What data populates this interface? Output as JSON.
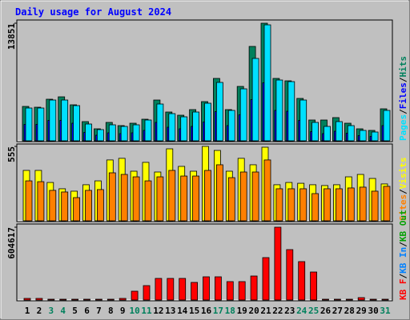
{
  "title": "Daily usage for August 2024",
  "legend_separator": "/",
  "chart_data": [
    {
      "type": "bar",
      "ylim": [
        0,
        13851
      ],
      "yticks": [
        13851
      ],
      "series": [
        {
          "name": "Hits",
          "color": "#00805c",
          "values": [
            4050,
            3956,
            4898,
            5181,
            4239,
            2261,
            1413,
            2167,
            1790,
            2072,
            2543,
            4804,
            3391,
            3014,
            3674,
            4616,
            7348,
            3674,
            6406,
            11116,
            13851,
            7348,
            7065,
            4993,
            2449,
            2449,
            2732,
            2072,
            1413,
            1225,
            3768
          ]
        },
        {
          "name": "Files",
          "color": "#0000ff",
          "values": [
            1931,
            1931,
            2402,
            2402,
            2072,
            989,
            660,
            942,
            848,
            942,
            1225,
            2166,
            1601,
            1413,
            1696,
            2213,
            3438,
            1790,
            3061,
            4851,
            6829,
            3579,
            3485,
            2402,
            1083,
            848,
            1130,
            895,
            612,
            518,
            1790
          ]
        },
        {
          "name": "Pages",
          "color": "#00e0ff",
          "values": [
            3862,
            3862,
            4804,
            4804,
            4145,
            1978,
            1319,
            1884,
            1696,
            1884,
            2449,
            4333,
            3203,
            2826,
            3391,
            4427,
            6877,
            3580,
            6123,
            9703,
            13659,
            7159,
            6971,
            4804,
            2167,
            1696,
            2261,
            1790,
            1225,
            1036,
            3580
          ]
        }
      ]
    },
    {
      "type": "bar",
      "ylim": [
        0,
        555
      ],
      "yticks": [
        555
      ],
      "series": [
        {
          "name": "Visits",
          "color": "#ffff00",
          "values": [
            376,
            376,
            286,
            239,
            221,
            269,
            298,
            454,
            466,
            370,
            436,
            364,
            537,
            406,
            370,
            555,
            525,
            370,
            466,
            418,
            549,
            269,
            286,
            280,
            269,
            263,
            269,
            328,
            346,
            316,
            275
          ]
        },
        {
          "name": "Sites",
          "color": "#ff8000",
          "values": [
            298,
            292,
            227,
            215,
            173,
            227,
            233,
            358,
            346,
            328,
            298,
            328,
            376,
            334,
            334,
            376,
            418,
            322,
            364,
            364,
            454,
            239,
            239,
            239,
            203,
            239,
            239,
            245,
            251,
            221,
            257
          ]
        }
      ]
    },
    {
      "type": "bar",
      "ylim": [
        0,
        604617
      ],
      "yticks": [
        604617
      ],
      "series": [
        {
          "name": "KB F",
          "color": "#ff0000",
          "values": [
            13288,
            13288,
            6644,
            6644,
            6644,
            6644,
            6644,
            6644,
            13288,
            73084,
            119592,
            179388,
            179388,
            179388,
            146168,
            192676,
            192676,
            152812,
            152812,
            199320,
            352132,
            604617,
            418572,
            318912,
            232540,
            6644,
            6644,
            6644,
            19932,
            6644,
            6644
          ]
        }
      ],
      "legend_extra": [
        {
          "name": "KB In",
          "color": "#0080ff"
        },
        {
          "name": "KB Out",
          "color": "#00a000"
        }
      ],
      "categories": [
        "1",
        "2",
        "3",
        "4",
        "5",
        "6",
        "7",
        "8",
        "9",
        "10",
        "11",
        "12",
        "13",
        "14",
        "15",
        "16",
        "17",
        "18",
        "19",
        "20",
        "21",
        "22",
        "23",
        "24",
        "25",
        "26",
        "27",
        "28",
        "29",
        "30",
        "31"
      ],
      "weekend": [
        false,
        false,
        true,
        true,
        false,
        false,
        false,
        false,
        false,
        true,
        true,
        false,
        false,
        false,
        false,
        false,
        true,
        true,
        false,
        false,
        false,
        false,
        false,
        true,
        true,
        false,
        false,
        false,
        false,
        false,
        true
      ],
      "weekend_color": "#00805c",
      "weekday_color": "#000000"
    }
  ]
}
